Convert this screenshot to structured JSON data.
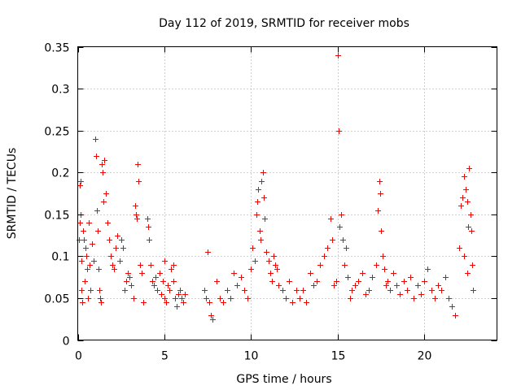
{
  "chart_data": {
    "type": "scatter",
    "title": "Day 112 of 2019, SRMTID for receiver mobs",
    "xlabel": "GPS time / hours",
    "ylabel": "SRMTID / TECUs",
    "xlim": [
      0,
      24.2
    ],
    "ylim": [
      0,
      0.35
    ],
    "x_ticks": [
      0,
      5,
      10,
      15,
      20
    ],
    "x_tick_labels": [
      "0",
      "5",
      "10",
      "15",
      "20"
    ],
    "y_ticks": [
      0,
      0.05,
      0.1,
      0.15,
      0.2,
      0.25,
      0.3,
      0.35
    ],
    "y_tick_labels": [
      "0",
      "0.05",
      "0.1",
      "0.15",
      "0.2",
      "0.25",
      "0.3",
      "0.35"
    ],
    "grid": true,
    "marker": "+",
    "series": [
      {
        "name": "SRMTID",
        "color": "#ff0000",
        "points": [
          [
            0.05,
            0.12
          ],
          [
            0.1,
            0.14
          ],
          [
            0.12,
            0.185
          ],
          [
            0.15,
            0.19
          ],
          [
            0.18,
            0.15
          ],
          [
            0.2,
            0.095
          ],
          [
            0.22,
            0.06
          ],
          [
            0.25,
            0.045
          ],
          [
            0.3,
            0.13
          ],
          [
            0.35,
            0.12
          ],
          [
            0.4,
            0.07
          ],
          [
            0.45,
            0.11
          ],
          [
            0.5,
            0.1
          ],
          [
            0.55,
            0.085
          ],
          [
            0.6,
            0.05
          ],
          [
            0.65,
            0.14
          ],
          [
            0.7,
            0.09
          ],
          [
            0.75,
            0.06
          ],
          [
            0.8,
            0.115
          ],
          [
            0.9,
            0.095
          ],
          [
            1.0,
            0.24
          ],
          [
            1.05,
            0.22
          ],
          [
            1.1,
            0.155
          ],
          [
            1.15,
            0.13
          ],
          [
            1.2,
            0.085
          ],
          [
            1.25,
            0.06
          ],
          [
            1.3,
            0.05
          ],
          [
            1.35,
            0.045
          ],
          [
            1.4,
            0.21
          ],
          [
            1.45,
            0.2
          ],
          [
            1.5,
            0.165
          ],
          [
            1.55,
            0.215
          ],
          [
            1.6,
            0.175
          ],
          [
            1.7,
            0.14
          ],
          [
            1.8,
            0.12
          ],
          [
            1.9,
            0.1
          ],
          [
            2.0,
            0.09
          ],
          [
            2.1,
            0.085
          ],
          [
            2.2,
            0.11
          ],
          [
            2.3,
            0.125
          ],
          [
            2.4,
            0.095
          ],
          [
            2.5,
            0.12
          ],
          [
            2.6,
            0.11
          ],
          [
            2.7,
            0.06
          ],
          [
            2.8,
            0.07
          ],
          [
            2.9,
            0.08
          ],
          [
            3.0,
            0.075
          ],
          [
            3.1,
            0.065
          ],
          [
            3.2,
            0.05
          ],
          [
            3.3,
            0.16
          ],
          [
            3.35,
            0.15
          ],
          [
            3.4,
            0.145
          ],
          [
            3.45,
            0.21
          ],
          [
            3.5,
            0.19
          ],
          [
            3.6,
            0.09
          ],
          [
            3.7,
            0.08
          ],
          [
            3.8,
            0.045
          ],
          [
            4.0,
            0.145
          ],
          [
            4.05,
            0.135
          ],
          [
            4.1,
            0.12
          ],
          [
            4.2,
            0.09
          ],
          [
            4.3,
            0.07
          ],
          [
            4.4,
            0.065
          ],
          [
            4.5,
            0.075
          ],
          [
            4.6,
            0.06
          ],
          [
            4.7,
            0.08
          ],
          [
            4.8,
            0.055
          ],
          [
            4.9,
            0.07
          ],
          [
            5.0,
            0.05
          ],
          [
            5.1,
            0.045
          ],
          [
            5.2,
            0.065
          ],
          [
            5.3,
            0.06
          ],
          [
            5.4,
            0.085
          ],
          [
            5.5,
            0.07
          ],
          [
            5.6,
            0.05
          ],
          [
            5.7,
            0.04
          ],
          [
            5.8,
            0.055
          ],
          [
            5.9,
            0.06
          ],
          [
            6.0,
            0.05
          ],
          [
            6.1,
            0.045
          ],
          [
            6.2,
            0.055
          ],
          [
            5.0,
            0.095
          ],
          [
            5.5,
            0.09
          ],
          [
            7.3,
            0.06
          ],
          [
            7.4,
            0.05
          ],
          [
            7.5,
            0.105
          ],
          [
            7.6,
            0.045
          ],
          [
            7.7,
            0.03
          ],
          [
            7.8,
            0.025
          ],
          [
            8.0,
            0.07
          ],
          [
            8.2,
            0.05
          ],
          [
            8.4,
            0.045
          ],
          [
            8.6,
            0.06
          ],
          [
            8.8,
            0.05
          ],
          [
            9.0,
            0.08
          ],
          [
            9.2,
            0.065
          ],
          [
            9.4,
            0.075
          ],
          [
            9.6,
            0.06
          ],
          [
            9.8,
            0.05
          ],
          [
            10.0,
            0.085
          ],
          [
            10.1,
            0.11
          ],
          [
            10.2,
            0.095
          ],
          [
            10.3,
            0.15
          ],
          [
            10.35,
            0.165
          ],
          [
            10.4,
            0.18
          ],
          [
            10.5,
            0.13
          ],
          [
            10.55,
            0.12
          ],
          [
            10.6,
            0.19
          ],
          [
            10.7,
            0.2
          ],
          [
            10.75,
            0.17
          ],
          [
            10.8,
            0.145
          ],
          [
            10.9,
            0.105
          ],
          [
            11.0,
            0.095
          ],
          [
            11.1,
            0.08
          ],
          [
            11.2,
            0.07
          ],
          [
            11.3,
            0.1
          ],
          [
            11.4,
            0.09
          ],
          [
            11.5,
            0.085
          ],
          [
            11.6,
            0.065
          ],
          [
            11.8,
            0.06
          ],
          [
            12.0,
            0.05
          ],
          [
            12.2,
            0.07
          ],
          [
            12.4,
            0.045
          ],
          [
            12.6,
            0.06
          ],
          [
            12.8,
            0.05
          ],
          [
            13.0,
            0.06
          ],
          [
            13.2,
            0.045
          ],
          [
            13.4,
            0.08
          ],
          [
            13.6,
            0.065
          ],
          [
            13.8,
            0.07
          ],
          [
            14.0,
            0.09
          ],
          [
            14.2,
            0.1
          ],
          [
            14.4,
            0.11
          ],
          [
            14.6,
            0.145
          ],
          [
            14.7,
            0.12
          ],
          [
            14.8,
            0.065
          ],
          [
            14.9,
            0.07
          ],
          [
            15.0,
            0.34
          ],
          [
            15.05,
            0.25
          ],
          [
            15.1,
            0.135
          ],
          [
            15.2,
            0.15
          ],
          [
            15.3,
            0.12
          ],
          [
            15.4,
            0.09
          ],
          [
            15.5,
            0.11
          ],
          [
            15.6,
            0.075
          ],
          [
            15.7,
            0.05
          ],
          [
            15.8,
            0.06
          ],
          [
            16.0,
            0.065
          ],
          [
            16.2,
            0.07
          ],
          [
            16.4,
            0.08
          ],
          [
            16.6,
            0.055
          ],
          [
            16.8,
            0.06
          ],
          [
            17.0,
            0.075
          ],
          [
            17.2,
            0.09
          ],
          [
            17.3,
            0.155
          ],
          [
            17.4,
            0.19
          ],
          [
            17.45,
            0.175
          ],
          [
            17.5,
            0.13
          ],
          [
            17.6,
            0.1
          ],
          [
            17.7,
            0.085
          ],
          [
            17.8,
            0.065
          ],
          [
            17.9,
            0.07
          ],
          [
            18.0,
            0.06
          ],
          [
            18.2,
            0.08
          ],
          [
            18.4,
            0.065
          ],
          [
            18.6,
            0.055
          ],
          [
            18.8,
            0.07
          ],
          [
            19.0,
            0.06
          ],
          [
            19.2,
            0.075
          ],
          [
            19.4,
            0.05
          ],
          [
            19.6,
            0.065
          ],
          [
            19.8,
            0.055
          ],
          [
            20.0,
            0.07
          ],
          [
            20.2,
            0.085
          ],
          [
            20.4,
            0.06
          ],
          [
            20.6,
            0.05
          ],
          [
            20.8,
            0.065
          ],
          [
            21.0,
            0.06
          ],
          [
            21.2,
            0.075
          ],
          [
            21.4,
            0.05
          ],
          [
            21.6,
            0.04
          ],
          [
            21.8,
            0.03
          ],
          [
            22.0,
            0.11
          ],
          [
            22.1,
            0.16
          ],
          [
            22.2,
            0.17
          ],
          [
            22.3,
            0.195
          ],
          [
            22.4,
            0.18
          ],
          [
            22.5,
            0.165
          ],
          [
            22.55,
            0.135
          ],
          [
            22.6,
            0.205
          ],
          [
            22.65,
            0.15
          ],
          [
            22.7,
            0.13
          ],
          [
            22.75,
            0.09
          ],
          [
            22.8,
            0.06
          ],
          [
            22.5,
            0.08
          ],
          [
            22.3,
            0.1
          ]
        ]
      }
    ]
  }
}
